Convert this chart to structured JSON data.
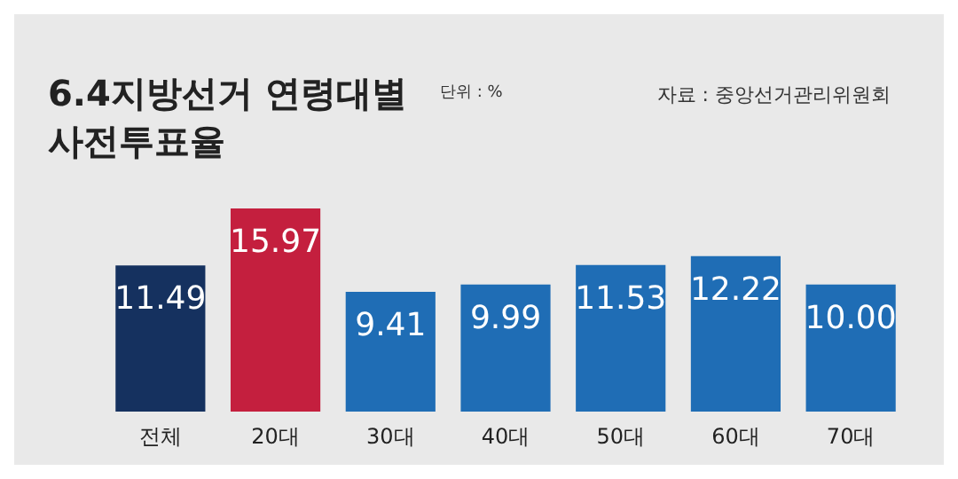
{
  "chart_data": {
    "type": "bar",
    "title": "6.4지방선거 연령대별 사전투표율",
    "annotations": [
      "단위 : %",
      "자료 : 중앙선거관리위원회"
    ],
    "categories": [
      "전체",
      "20대",
      "30대",
      "40대",
      "50대",
      "60대",
      "70대"
    ],
    "values": [
      11.49,
      15.97,
      9.41,
      9.99,
      11.53,
      12.22,
      10.0
    ],
    "value_labels": [
      "11.49",
      "15.97",
      "9.41",
      "9.99",
      "11.53",
      "12.22",
      "10.00"
    ],
    "colors": [
      "#15315f",
      "#c41f3e",
      "#1f6db5",
      "#1f6db5",
      "#1f6db5",
      "#1f6db5",
      "#1f6db5"
    ],
    "tick_labels": "x",
    "grid": false
  }
}
